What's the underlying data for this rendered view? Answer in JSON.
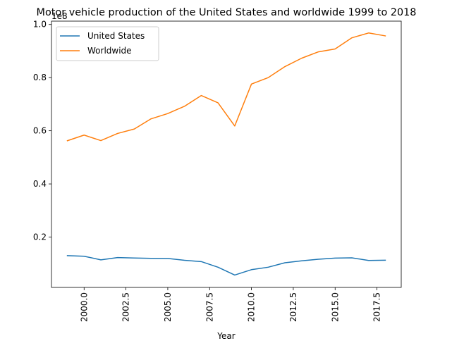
{
  "chart_data": {
    "type": "line",
    "title": "Motor vehicle production of the United States and worldwide 1999 to 2018",
    "xlabel": "Year",
    "ylabel": "",
    "y_offset_label": "1e8",
    "x": [
      1999,
      2000,
      2001,
      2002,
      2003,
      2004,
      2005,
      2006,
      2007,
      2008,
      2009,
      2010,
      2011,
      2012,
      2013,
      2014,
      2015,
      2016,
      2017,
      2018
    ],
    "series": [
      {
        "name": "United States",
        "color": "#1f77b4",
        "values": [
          13025000,
          12800000,
          11425000,
          12280000,
          12115000,
          11990000,
          11946000,
          11264000,
          10780000,
          8672000,
          5709000,
          7743000,
          8661000,
          10336000,
          11066000,
          11661000,
          12100000,
          12198000,
          11190000,
          11298000
        ]
      },
      {
        "name": "Worldwide",
        "color": "#ff7f0e",
        "values": [
          56258000,
          58374000,
          56305000,
          58994000,
          60663000,
          64496000,
          66482000,
          69223000,
          73266000,
          70527000,
          61792000,
          77584000,
          79989000,
          84141000,
          87300000,
          89700000,
          90780000,
          94976000,
          96800000,
          95700000
        ]
      }
    ],
    "xlim": [
      1998.05,
      2018.95
    ],
    "ylim": [
      1060000,
      101250000
    ],
    "x_ticks": [
      2000.0,
      2002.5,
      2005.0,
      2007.5,
      2010.0,
      2012.5,
      2015.0,
      2017.5
    ],
    "x_tick_labels": [
      "2000.0",
      "2002.5",
      "2005.0",
      "2007.5",
      "2010.0",
      "2012.5",
      "2015.0",
      "2017.5"
    ],
    "y_ticks": [
      20000000,
      40000000,
      60000000,
      80000000,
      100000000
    ],
    "y_tick_labels": [
      "0.2",
      "0.4",
      "0.6",
      "0.8",
      "1.0"
    ],
    "x_tick_rotation": 90,
    "grid": false,
    "legend_position": "upper-left"
  }
}
